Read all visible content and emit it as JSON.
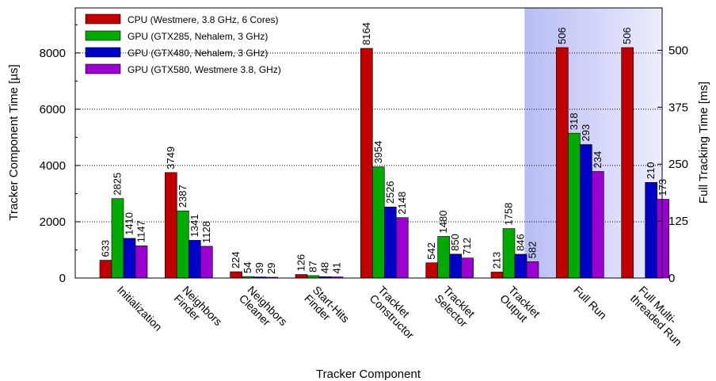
{
  "chart_data": {
    "type": "bar",
    "xlabel": "Tracker Component",
    "ylabel": "Tracker Component Time [µs]",
    "y2label": "Full Tracking Time [ms]",
    "ylim": [
      0,
      9600
    ],
    "y2lim": [
      0,
      593
    ],
    "yticks": [
      0,
      2000,
      4000,
      6000,
      8000
    ],
    "y2ticks": [
      0,
      125,
      250,
      375,
      500
    ],
    "grid": "dotted horizontal",
    "legend_position": "top-left",
    "categories": [
      [
        "Initialization"
      ],
      [
        "Neighbors",
        "Finder"
      ],
      [
        "Neighbors",
        "Cleaner"
      ],
      [
        "Start-Hits",
        "Finder"
      ],
      [
        "Tracklet",
        "Constructor"
      ],
      [
        "Tracklet",
        "Selector"
      ],
      [
        "Tracklet",
        "Output"
      ],
      [
        "Full Run"
      ],
      [
        "Full Multi-",
        "threaded Run"
      ]
    ],
    "secondary_axis_categories": [
      7,
      8
    ],
    "series": [
      {
        "name": "CPU (Westmere, 3.8 GHz, 6 Cores)",
        "color": "#c00000",
        "values": [
          633,
          3749,
          224,
          126,
          8164,
          542,
          213,
          506,
          506
        ]
      },
      {
        "name": "GPU (GTX285, Nehalem, 3 GHz)",
        "color": "#00aa00",
        "values": [
          2825,
          2387,
          54,
          87,
          3954,
          1480,
          1758,
          318,
          null
        ]
      },
      {
        "name": "GPU (GTX480, Nehalem, 3 GHz)",
        "color": "#0000c8",
        "values": [
          1410,
          1341,
          39,
          48,
          2526,
          850,
          846,
          293,
          210
        ]
      },
      {
        "name": "GPU (GTX580, Westmere 3.8, GHz)",
        "color": "#9a00d0",
        "values": [
          1147,
          1128,
          29,
          41,
          2148,
          712,
          582,
          234,
          173
        ]
      }
    ]
  }
}
